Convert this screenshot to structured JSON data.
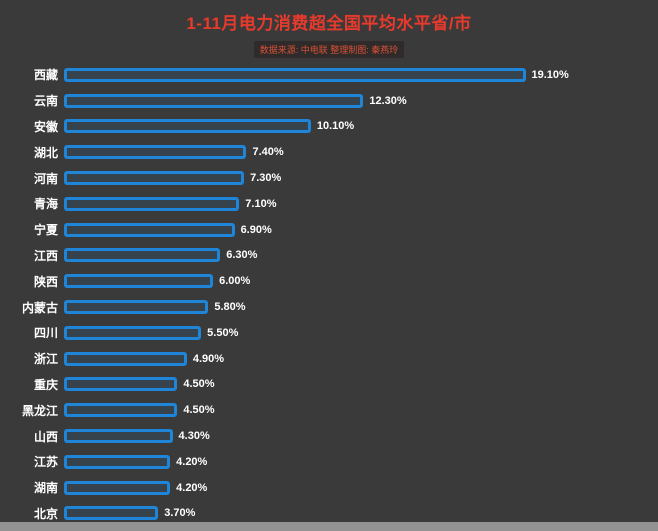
{
  "chart_data": {
    "type": "bar",
    "orientation": "horizontal",
    "title": "1-11月电力消费超全国平均水平省/市",
    "source_note": "数据来源: 中电联 整理制图: 秦燕玲",
    "categories": [
      "西藏",
      "云南",
      "安徽",
      "湖北",
      "河南",
      "青海",
      "宁夏",
      "江西",
      "陕西",
      "内蒙古",
      "四川",
      "浙江",
      "重庆",
      "黑龙江",
      "山西",
      "江苏",
      "湖南",
      "北京"
    ],
    "values": [
      19.1,
      12.3,
      10.1,
      7.4,
      7.3,
      7.1,
      6.9,
      6.3,
      6.0,
      5.8,
      5.5,
      4.9,
      4.5,
      4.5,
      4.3,
      4.2,
      4.2,
      3.7
    ],
    "value_labels": [
      "19.10%",
      "12.30%",
      "10.10%",
      "7.40%",
      "7.30%",
      "7.10%",
      "6.90%",
      "6.30%",
      "6.00%",
      "5.80%",
      "5.50%",
      "4.90%",
      "4.50%",
      "4.50%",
      "4.30%",
      "4.20%",
      "4.20%",
      "3.70%"
    ],
    "xlim": [
      0,
      24
    ],
    "grid": false,
    "legend": false,
    "ylabel": "",
    "xlabel": "",
    "colors": {
      "bar": "#1f85d8",
      "title": "#e83a2c",
      "background": "#3a3a3a",
      "text": "#ffffff",
      "subtitle": "#d95136"
    }
  }
}
